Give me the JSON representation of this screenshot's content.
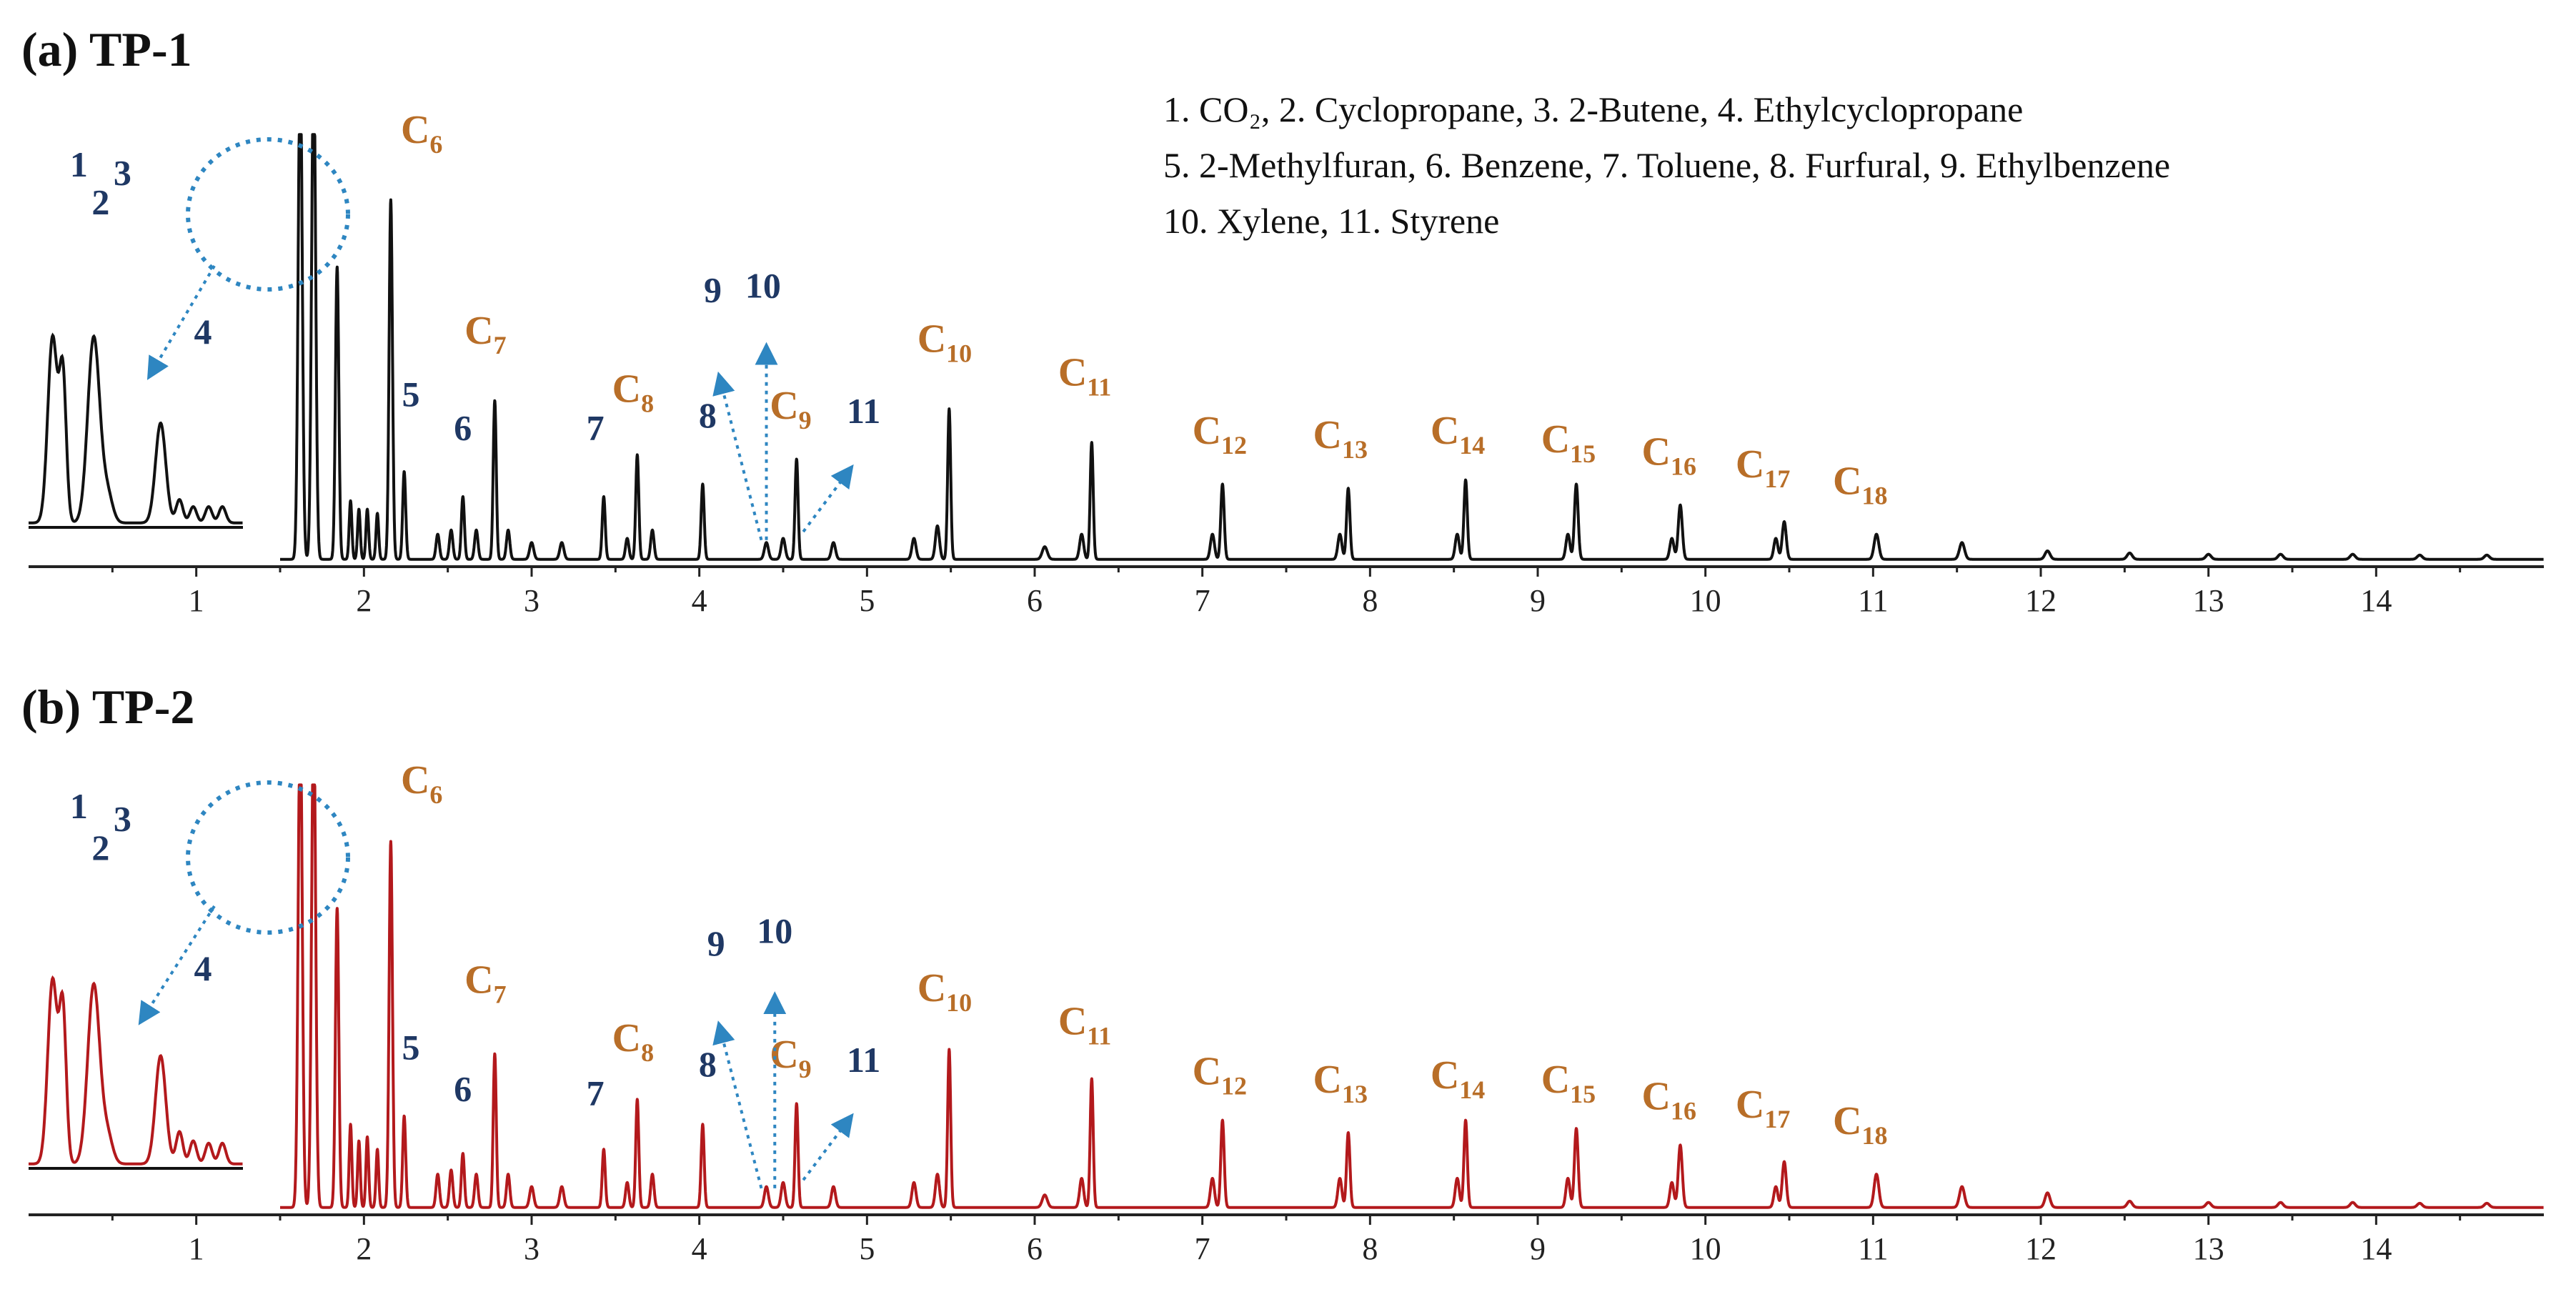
{
  "chart_data": [
    {
      "type": "line",
      "panel_title": "(a) TP-1",
      "color": "#111111",
      "xlim": [
        0,
        15
      ],
      "x_ticks": [
        1,
        2,
        3,
        4,
        5,
        6,
        7,
        8,
        9,
        10,
        11,
        12,
        13,
        14
      ],
      "tick_labels": [
        "1",
        "2",
        "3",
        "4",
        "5",
        "6",
        "7",
        "8",
        "9",
        "10",
        "11",
        "12",
        "13",
        "14"
      ],
      "legend_lines": [
        "1. CO₂, 2. Cyclopropane, 3. 2-Butene, 4. Ethylcyclopropane",
        "5. 2-Methylfuran, 6. Benzene, 7. Toluene, 8. Furfural, 9. Ethylbenzene",
        "10. Xylene, 11. Styrene"
      ],
      "peaks": [
        {
          "x": 1.62,
          "h": 1.2,
          "w": 0.012
        },
        {
          "x": 1.7,
          "h": 1.2,
          "w": 0.012
        },
        {
          "x": 1.84,
          "h": 0.7,
          "w": 0.01
        },
        {
          "x": 1.92,
          "h": 0.14,
          "w": 0.008
        },
        {
          "x": 1.97,
          "h": 0.12,
          "w": 0.008
        },
        {
          "x": 2.02,
          "h": 0.12,
          "w": 0.008
        },
        {
          "x": 2.08,
          "h": 0.11,
          "w": 0.008
        },
        {
          "x": 2.16,
          "h": 0.86,
          "w": 0.01
        },
        {
          "x": 2.24,
          "h": 0.21,
          "w": 0.009
        },
        {
          "x": 2.44,
          "h": 0.06,
          "w": 0.01
        },
        {
          "x": 2.52,
          "h": 0.07,
          "w": 0.01
        },
        {
          "x": 2.59,
          "h": 0.15,
          "w": 0.009
        },
        {
          "x": 2.67,
          "h": 0.07,
          "w": 0.01
        },
        {
          "x": 2.78,
          "h": 0.38,
          "w": 0.009
        },
        {
          "x": 2.86,
          "h": 0.07,
          "w": 0.01
        },
        {
          "x": 3.0,
          "h": 0.04,
          "w": 0.012
        },
        {
          "x": 3.18,
          "h": 0.04,
          "w": 0.012
        },
        {
          "x": 3.43,
          "h": 0.15,
          "w": 0.009
        },
        {
          "x": 3.57,
          "h": 0.05,
          "w": 0.01
        },
        {
          "x": 3.63,
          "h": 0.25,
          "w": 0.009
        },
        {
          "x": 3.72,
          "h": 0.07,
          "w": 0.01
        },
        {
          "x": 4.02,
          "h": 0.18,
          "w": 0.009
        },
        {
          "x": 4.4,
          "h": 0.04,
          "w": 0.012
        },
        {
          "x": 4.5,
          "h": 0.05,
          "w": 0.012
        },
        {
          "x": 4.58,
          "h": 0.24,
          "w": 0.009
        },
        {
          "x": 4.8,
          "h": 0.04,
          "w": 0.012
        },
        {
          "x": 5.28,
          "h": 0.05,
          "w": 0.012
        },
        {
          "x": 5.42,
          "h": 0.08,
          "w": 0.012
        },
        {
          "x": 5.49,
          "h": 0.36,
          "w": 0.009
        },
        {
          "x": 6.06,
          "h": 0.03,
          "w": 0.015
        },
        {
          "x": 6.28,
          "h": 0.06,
          "w": 0.012
        },
        {
          "x": 6.34,
          "h": 0.28,
          "w": 0.009
        },
        {
          "x": 7.06,
          "h": 0.06,
          "w": 0.012
        },
        {
          "x": 7.12,
          "h": 0.18,
          "w": 0.01
        },
        {
          "x": 7.82,
          "h": 0.06,
          "w": 0.012
        },
        {
          "x": 7.87,
          "h": 0.17,
          "w": 0.01
        },
        {
          "x": 8.52,
          "h": 0.06,
          "w": 0.012
        },
        {
          "x": 8.57,
          "h": 0.19,
          "w": 0.01
        },
        {
          "x": 9.18,
          "h": 0.06,
          "w": 0.012
        },
        {
          "x": 9.23,
          "h": 0.18,
          "w": 0.011
        },
        {
          "x": 9.8,
          "h": 0.05,
          "w": 0.012
        },
        {
          "x": 9.85,
          "h": 0.13,
          "w": 0.012
        },
        {
          "x": 10.42,
          "h": 0.05,
          "w": 0.012
        },
        {
          "x": 10.47,
          "h": 0.09,
          "w": 0.012
        },
        {
          "x": 11.02,
          "h": 0.06,
          "w": 0.014
        },
        {
          "x": 11.53,
          "h": 0.04,
          "w": 0.015
        },
        {
          "x": 12.04,
          "h": 0.02,
          "w": 0.015
        },
        {
          "x": 12.53,
          "h": 0.015,
          "w": 0.015
        },
        {
          "x": 13.0,
          "h": 0.012,
          "w": 0.015
        },
        {
          "x": 13.43,
          "h": 0.012,
          "w": 0.015
        },
        {
          "x": 13.86,
          "h": 0.012,
          "w": 0.015
        },
        {
          "x": 14.26,
          "h": 0.01,
          "w": 0.015
        },
        {
          "x": 14.66,
          "h": 0.01,
          "w": 0.015
        }
      ],
      "inset_peaks": [
        {
          "x": 0.34,
          "h": 0.8,
          "w": 0.028
        },
        {
          "x": 0.4,
          "h": 0.62,
          "w": 0.02
        },
        {
          "x": 0.58,
          "h": 0.8,
          "w": 0.035
        },
        {
          "x": 0.66,
          "h": 0.12,
          "w": 0.03
        },
        {
          "x": 0.97,
          "h": 0.43,
          "w": 0.03
        },
        {
          "x": 1.08,
          "h": 0.1,
          "w": 0.02
        },
        {
          "x": 1.16,
          "h": 0.07,
          "w": 0.02
        },
        {
          "x": 1.25,
          "h": 0.07,
          "w": 0.02
        },
        {
          "x": 1.33,
          "h": 0.07,
          "w": 0.02
        }
      ],
      "compound_labels": [
        {
          "text": "1",
          "x": 0.3,
          "h": 0.92
        },
        {
          "text": "2",
          "x": 0.43,
          "h": 0.83
        },
        {
          "text": "3",
          "x": 0.56,
          "h": 0.9
        },
        {
          "text": "4",
          "x": 1.04,
          "h": 0.52
        },
        {
          "text": "5",
          "x": 2.28,
          "h": 0.37
        },
        {
          "text": "6",
          "x": 2.59,
          "h": 0.29
        },
        {
          "text": "7",
          "x": 3.38,
          "h": 0.29
        },
        {
          "text": "8",
          "x": 4.05,
          "h": 0.32
        },
        {
          "text": "9",
          "x": 4.08,
          "h": 0.62
        },
        {
          "text": "10",
          "x": 4.38,
          "h": 0.63
        },
        {
          "text": "11",
          "x": 4.98,
          "h": 0.33
        }
      ],
      "carbon_labels": [
        {
          "base": "C",
          "sub": "6",
          "x": 2.22,
          "h": 1.0
        },
        {
          "base": "C",
          "sub": "7",
          "x": 2.6,
          "h": 0.52
        },
        {
          "base": "C",
          "sub": "8",
          "x": 3.48,
          "h": 0.38
        },
        {
          "base": "C",
          "sub": "9",
          "x": 4.42,
          "h": 0.34
        },
        {
          "base": "C",
          "sub": "10",
          "x": 5.3,
          "h": 0.5
        },
        {
          "base": "C",
          "sub": "11",
          "x": 6.14,
          "h": 0.42
        },
        {
          "base": "C",
          "sub": "12",
          "x": 6.94,
          "h": 0.28
        },
        {
          "base": "C",
          "sub": "13",
          "x": 7.66,
          "h": 0.27
        },
        {
          "base": "C",
          "sub": "14",
          "x": 8.36,
          "h": 0.28
        },
        {
          "base": "C",
          "sub": "15",
          "x": 9.02,
          "h": 0.26
        },
        {
          "base": "C",
          "sub": "16",
          "x": 9.62,
          "h": 0.23
        },
        {
          "base": "C",
          "sub": "17",
          "x": 10.18,
          "h": 0.2
        },
        {
          "base": "C",
          "sub": "18",
          "x": 10.76,
          "h": 0.16
        }
      ],
      "arrows": [
        {
          "x1": 4.37,
          "h1": 0.05,
          "x2": 4.12,
          "h2": 0.44
        },
        {
          "x1": 4.4,
          "h1": 0.05,
          "x2": 4.4,
          "h2": 0.51
        },
        {
          "x1": 4.62,
          "h1": 0.07,
          "x2": 4.9,
          "h2": 0.22
        }
      ]
    },
    {
      "type": "line",
      "panel_title": "(b) TP-2",
      "color": "#b3191c",
      "xlim": [
        0,
        15
      ],
      "x_ticks": [
        1,
        2,
        3,
        4,
        5,
        6,
        7,
        8,
        9,
        10,
        11,
        12,
        13,
        14
      ],
      "tick_labels": [
        "1",
        "2",
        "3",
        "4",
        "5",
        "6",
        "7",
        "8",
        "9",
        "10",
        "11",
        "12",
        "13",
        "14"
      ],
      "legend_lines": [],
      "peaks": [
        {
          "x": 1.62,
          "h": 1.2,
          "w": 0.012
        },
        {
          "x": 1.7,
          "h": 1.2,
          "w": 0.012
        },
        {
          "x": 1.84,
          "h": 0.72,
          "w": 0.01
        },
        {
          "x": 1.92,
          "h": 0.2,
          "w": 0.008
        },
        {
          "x": 1.97,
          "h": 0.16,
          "w": 0.008
        },
        {
          "x": 2.02,
          "h": 0.17,
          "w": 0.008
        },
        {
          "x": 2.08,
          "h": 0.14,
          "w": 0.008
        },
        {
          "x": 2.16,
          "h": 0.88,
          "w": 0.01
        },
        {
          "x": 2.24,
          "h": 0.22,
          "w": 0.009
        },
        {
          "x": 2.44,
          "h": 0.08,
          "w": 0.01
        },
        {
          "x": 2.52,
          "h": 0.09,
          "w": 0.01
        },
        {
          "x": 2.59,
          "h": 0.13,
          "w": 0.009
        },
        {
          "x": 2.67,
          "h": 0.08,
          "w": 0.01
        },
        {
          "x": 2.78,
          "h": 0.37,
          "w": 0.009
        },
        {
          "x": 2.86,
          "h": 0.08,
          "w": 0.01
        },
        {
          "x": 3.0,
          "h": 0.05,
          "w": 0.012
        },
        {
          "x": 3.18,
          "h": 0.05,
          "w": 0.012
        },
        {
          "x": 3.43,
          "h": 0.14,
          "w": 0.009
        },
        {
          "x": 3.57,
          "h": 0.06,
          "w": 0.01
        },
        {
          "x": 3.63,
          "h": 0.26,
          "w": 0.009
        },
        {
          "x": 3.72,
          "h": 0.08,
          "w": 0.01
        },
        {
          "x": 4.02,
          "h": 0.2,
          "w": 0.009
        },
        {
          "x": 4.4,
          "h": 0.05,
          "w": 0.012
        },
        {
          "x": 4.5,
          "h": 0.06,
          "w": 0.012
        },
        {
          "x": 4.58,
          "h": 0.25,
          "w": 0.009
        },
        {
          "x": 4.8,
          "h": 0.05,
          "w": 0.012
        },
        {
          "x": 5.28,
          "h": 0.06,
          "w": 0.012
        },
        {
          "x": 5.42,
          "h": 0.08,
          "w": 0.012
        },
        {
          "x": 5.49,
          "h": 0.38,
          "w": 0.009
        },
        {
          "x": 6.06,
          "h": 0.03,
          "w": 0.015
        },
        {
          "x": 6.28,
          "h": 0.07,
          "w": 0.012
        },
        {
          "x": 6.34,
          "h": 0.31,
          "w": 0.009
        },
        {
          "x": 7.06,
          "h": 0.07,
          "w": 0.012
        },
        {
          "x": 7.12,
          "h": 0.21,
          "w": 0.01
        },
        {
          "x": 7.82,
          "h": 0.07,
          "w": 0.012
        },
        {
          "x": 7.87,
          "h": 0.18,
          "w": 0.01
        },
        {
          "x": 8.52,
          "h": 0.07,
          "w": 0.012
        },
        {
          "x": 8.57,
          "h": 0.21,
          "w": 0.01
        },
        {
          "x": 9.18,
          "h": 0.07,
          "w": 0.012
        },
        {
          "x": 9.23,
          "h": 0.19,
          "w": 0.011
        },
        {
          "x": 9.8,
          "h": 0.06,
          "w": 0.012
        },
        {
          "x": 9.85,
          "h": 0.15,
          "w": 0.012
        },
        {
          "x": 10.42,
          "h": 0.05,
          "w": 0.012
        },
        {
          "x": 10.47,
          "h": 0.11,
          "w": 0.012
        },
        {
          "x": 11.02,
          "h": 0.08,
          "w": 0.014
        },
        {
          "x": 11.53,
          "h": 0.05,
          "w": 0.015
        },
        {
          "x": 12.04,
          "h": 0.035,
          "w": 0.015
        },
        {
          "x": 12.53,
          "h": 0.015,
          "w": 0.015
        },
        {
          "x": 13.0,
          "h": 0.012,
          "w": 0.015
        },
        {
          "x": 13.43,
          "h": 0.012,
          "w": 0.015
        },
        {
          "x": 13.86,
          "h": 0.012,
          "w": 0.015
        },
        {
          "x": 14.26,
          "h": 0.01,
          "w": 0.015
        },
        {
          "x": 14.66,
          "h": 0.01,
          "w": 0.015
        }
      ],
      "inset_peaks": [
        {
          "x": 0.34,
          "h": 0.8,
          "w": 0.028
        },
        {
          "x": 0.4,
          "h": 0.65,
          "w": 0.02
        },
        {
          "x": 0.58,
          "h": 0.78,
          "w": 0.035
        },
        {
          "x": 0.66,
          "h": 0.12,
          "w": 0.03
        },
        {
          "x": 0.97,
          "h": 0.47,
          "w": 0.03
        },
        {
          "x": 1.08,
          "h": 0.14,
          "w": 0.02
        },
        {
          "x": 1.16,
          "h": 0.1,
          "w": 0.02
        },
        {
          "x": 1.25,
          "h": 0.09,
          "w": 0.02
        },
        {
          "x": 1.33,
          "h": 0.09,
          "w": 0.02
        }
      ],
      "compound_labels": [
        {
          "text": "1",
          "x": 0.3,
          "h": 0.94
        },
        {
          "text": "2",
          "x": 0.43,
          "h": 0.84
        },
        {
          "text": "3",
          "x": 0.56,
          "h": 0.91
        },
        {
          "text": "4",
          "x": 1.04,
          "h": 0.55
        },
        {
          "text": "5",
          "x": 2.28,
          "h": 0.36
        },
        {
          "text": "6",
          "x": 2.59,
          "h": 0.26
        },
        {
          "text": "7",
          "x": 3.38,
          "h": 0.25
        },
        {
          "text": "8",
          "x": 4.05,
          "h": 0.32
        },
        {
          "text": "9",
          "x": 4.1,
          "h": 0.61
        },
        {
          "text": "10",
          "x": 4.45,
          "h": 0.64
        },
        {
          "text": "11",
          "x": 4.98,
          "h": 0.33
        }
      ],
      "carbon_labels": [
        {
          "base": "C",
          "sub": "6",
          "x": 2.22,
          "h": 1.0
        },
        {
          "base": "C",
          "sub": "7",
          "x": 2.6,
          "h": 0.52
        },
        {
          "base": "C",
          "sub": "8",
          "x": 3.48,
          "h": 0.38
        },
        {
          "base": "C",
          "sub": "9",
          "x": 4.42,
          "h": 0.34
        },
        {
          "base": "C",
          "sub": "10",
          "x": 5.3,
          "h": 0.5
        },
        {
          "base": "C",
          "sub": "11",
          "x": 6.14,
          "h": 0.42
        },
        {
          "base": "C",
          "sub": "12",
          "x": 6.94,
          "h": 0.3
        },
        {
          "base": "C",
          "sub": "13",
          "x": 7.66,
          "h": 0.28
        },
        {
          "base": "C",
          "sub": "14",
          "x": 8.36,
          "h": 0.29
        },
        {
          "base": "C",
          "sub": "15",
          "x": 9.02,
          "h": 0.28
        },
        {
          "base": "C",
          "sub": "16",
          "x": 9.62,
          "h": 0.24
        },
        {
          "base": "C",
          "sub": "17",
          "x": 10.18,
          "h": 0.22
        },
        {
          "base": "C",
          "sub": "18",
          "x": 10.76,
          "h": 0.18
        }
      ],
      "arrows": [
        {
          "x1": 4.37,
          "h1": 0.05,
          "x2": 4.12,
          "h2": 0.44
        },
        {
          "x1": 4.45,
          "h1": 0.05,
          "x2": 4.45,
          "h2": 0.51
        },
        {
          "x1": 4.62,
          "h1": 0.07,
          "x2": 4.9,
          "h2": 0.22
        }
      ]
    }
  ],
  "colors": {
    "compound_label": "#1f3864",
    "carbon_label": "#b86e28",
    "arrow": "#2e86c1",
    "axis": "#222222"
  }
}
